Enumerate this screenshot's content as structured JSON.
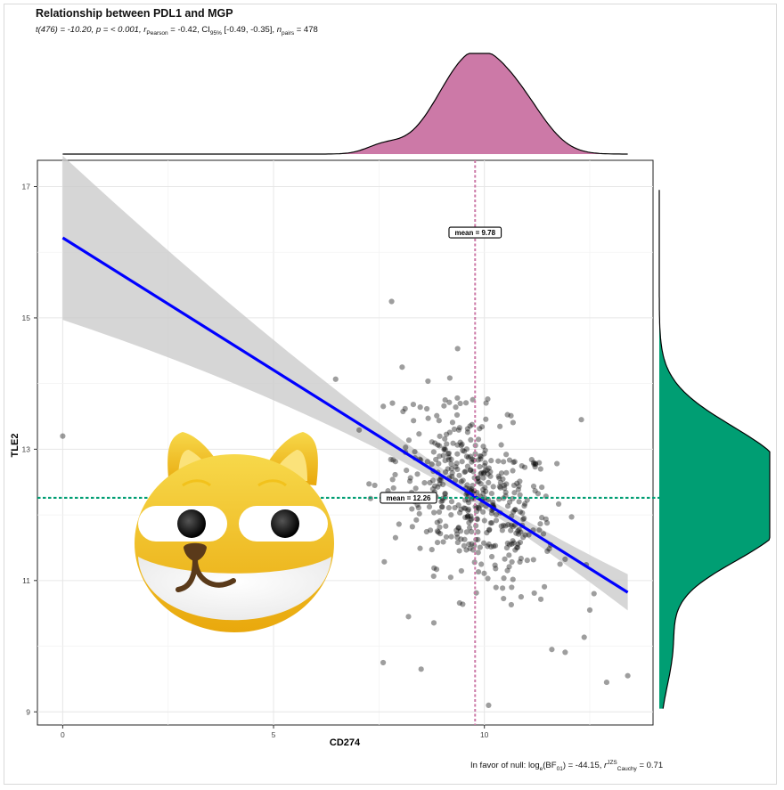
{
  "chart_data": {
    "type": "scatter",
    "title": "Relationship between PDL1 and MGP",
    "subtitle": {
      "t": "t(476) = -10.20,",
      "p": "p = < 0.001,",
      "r_prefix": "r",
      "r_sub": "Pearson",
      "r_value": " = -0.42,",
      "ci_prefix": "CI",
      "ci_sub": "95%",
      "ci_value": " [-0.49, -0.35],",
      "n_prefix": "n",
      "n_sub": "pairs",
      "n_value": " = 478"
    },
    "caption": {
      "prefix": "In favor of null: log",
      "log_sub": "e",
      "bf": "(BF",
      "bf_sub": "01",
      "bf_value": ") = -44.15,",
      "r_prefix": "r",
      "r_sup": "JZS",
      "r_sub": "Cauchy",
      "r_value": " = 0.71"
    },
    "xlabel": "CD274",
    "ylabel": "TLE2",
    "xlim": [
      -0.6,
      14.0
    ],
    "ylim": [
      8.8,
      17.4
    ],
    "x_ticks": [
      0,
      5,
      10
    ],
    "y_ticks": [
      9,
      11,
      13,
      15,
      17
    ],
    "x_tick_labels": [
      "0",
      "5",
      "10"
    ],
    "y_tick_labels": [
      "9",
      "11",
      "13",
      "15",
      "17"
    ],
    "grid": true,
    "regression": {
      "x_start": 0.0,
      "y_start": 16.22,
      "x_end": 13.4,
      "y_end": 10.82,
      "ci_start": [
        14.5,
        17.0
      ],
      "ci_end": [
        10.55,
        11.1
      ],
      "color": "#0000ff"
    },
    "mean_x": {
      "value": 9.78,
      "label": "mean = 9.78",
      "label_y": 16.3,
      "color": "#cc79a7"
    },
    "mean_y": {
      "value": 12.26,
      "label": "mean = 12.26",
      "label_x": 8.2,
      "color": "#009e73"
    },
    "x_density_color": "#cc79a7",
    "y_density_color": "#009e73",
    "point_color": "#000000",
    "outliers": [
      {
        "x": 0.0,
        "y": 13.2
      },
      {
        "x": 7.8,
        "y": 15.25
      },
      {
        "x": 7.6,
        "y": 9.75
      },
      {
        "x": 8.5,
        "y": 9.65
      },
      {
        "x": 10.1,
        "y": 9.1
      },
      {
        "x": 12.9,
        "y": 9.45
      },
      {
        "x": 13.4,
        "y": 9.55
      },
      {
        "x": 7.3,
        "y": 12.25
      },
      {
        "x": 7.4,
        "y": 12.45
      },
      {
        "x": 8.2,
        "y": 10.45
      },
      {
        "x": 12.3,
        "y": 13.45
      },
      {
        "x": 12.5,
        "y": 10.55
      },
      {
        "x": 8.05,
        "y": 14.25
      },
      {
        "x": 12.6,
        "y": 10.8
      },
      {
        "x": 11.6,
        "y": 9.95
      }
    ],
    "cloud": {
      "n": 463,
      "mean_x": 9.78,
      "sd_x": 0.95,
      "mean_y": 12.26,
      "sd_y": 0.72,
      "r": -0.42
    }
  }
}
